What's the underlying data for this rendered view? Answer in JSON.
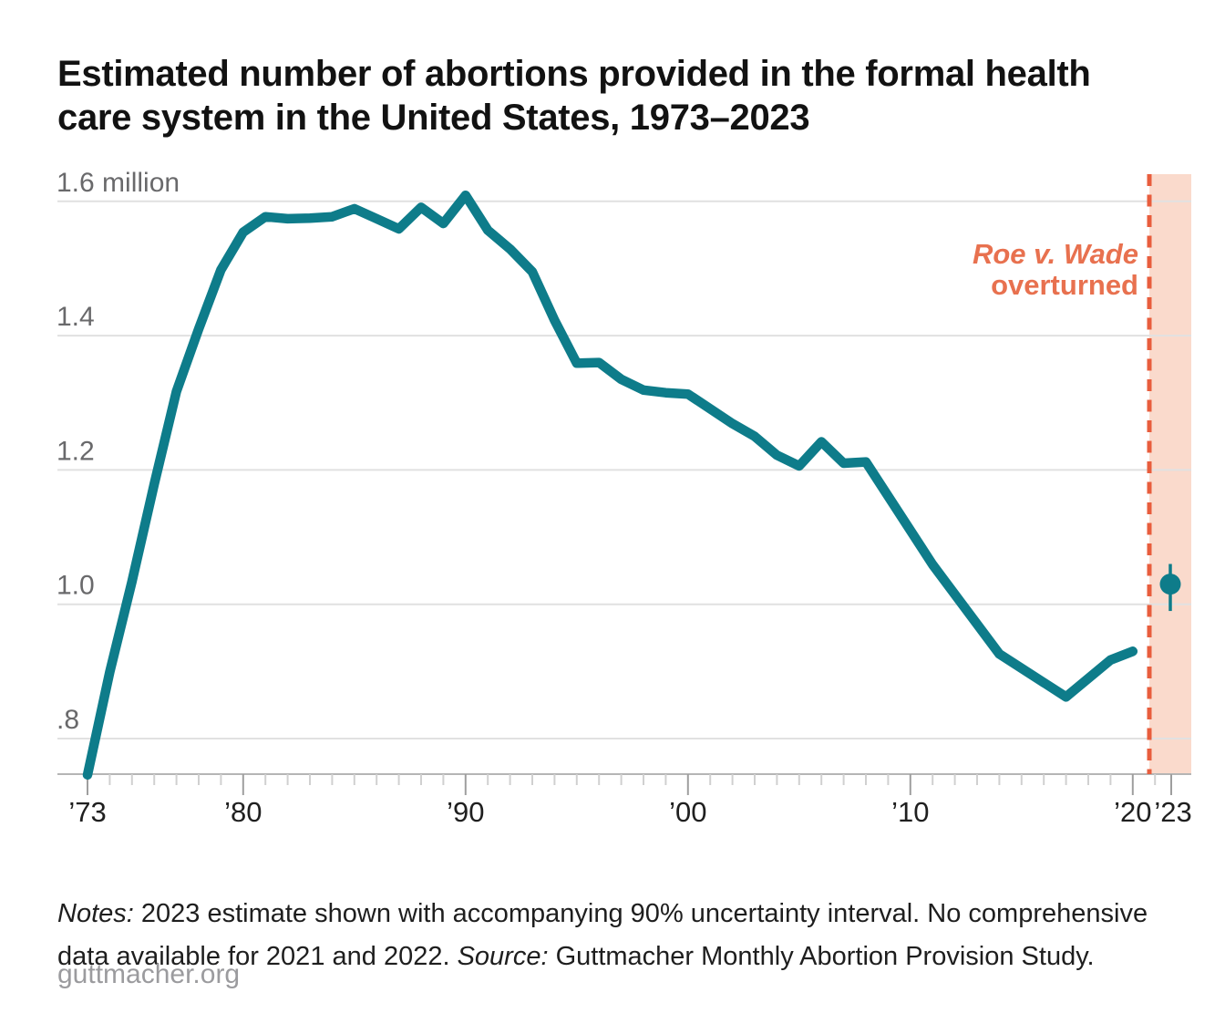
{
  "header": {
    "title": "Estimated number of abortions provided in the formal health care system in the United States, 1973–2023"
  },
  "chart_data": {
    "type": "line",
    "title": "Estimated number of abortions provided in the formal health care system in the United States, 1973–2023",
    "unit": "million abortions",
    "series_name": "Estimated abortions (millions)",
    "x": [
      1973,
      1974,
      1975,
      1976,
      1977,
      1978,
      1979,
      1980,
      1981,
      1982,
      1983,
      1984,
      1985,
      1986,
      1987,
      1988,
      1989,
      1990,
      1991,
      1992,
      1993,
      1994,
      1995,
      1996,
      1997,
      1998,
      1999,
      2000,
      2001,
      2002,
      2003,
      2004,
      2005,
      2006,
      2007,
      2008,
      2011,
      2014,
      2017,
      2019,
      2020
    ],
    "values": [
      0.746,
      0.899,
      1.034,
      1.179,
      1.317,
      1.41,
      1.498,
      1.554,
      1.577,
      1.574,
      1.575,
      1.577,
      1.589,
      1.574,
      1.559,
      1.591,
      1.567,
      1.609,
      1.557,
      1.529,
      1.495,
      1.423,
      1.359,
      1.36,
      1.335,
      1.319,
      1.315,
      1.313,
      1.291,
      1.269,
      1.25,
      1.222,
      1.206,
      1.242,
      1.21,
      1.212,
      1.059,
      0.926,
      0.862,
      0.917,
      0.93
    ],
    "estimate_2023": {
      "year": 2023,
      "value": 1.03,
      "ci_low": 0.99,
      "ci_high": 1.06
    },
    "no_data_region": {
      "from": 2021,
      "to": 2023,
      "note": "shaded band, no comprehensive data"
    },
    "annotations": {
      "roe_line1": "Roe v. Wade",
      "roe_line2": "overturned"
    },
    "y_ticks": [
      {
        "value": 1.6,
        "label": "1.6 million"
      },
      {
        "value": 1.4,
        "label": "1.4"
      },
      {
        "value": 1.2,
        "label": "1.2"
      },
      {
        "value": 1.0,
        "label": "1.0"
      },
      {
        "value": 0.8,
        "label": ".8"
      }
    ],
    "x_ticks": [
      {
        "year": 1973,
        "label": "’73"
      },
      {
        "year": 1980,
        "label": "’80"
      },
      {
        "year": 1990,
        "label": "’90"
      },
      {
        "year": 2000,
        "label": "’00"
      },
      {
        "year": 2010,
        "label": "’10"
      },
      {
        "year": 2020,
        "label": "’20"
      },
      {
        "year": 2023,
        "label": "’23"
      }
    ],
    "ylim": [
      0.747,
      1.66
    ],
    "xlim": [
      1973,
      2023
    ],
    "grid": "horizontal only",
    "legend": "none"
  },
  "notes": {
    "notes_label": "Notes:",
    "notes_text": " 2023 estimate shown with accompanying 90% uncertainty interval. No comprehensive data available for 2021 and 2022. ",
    "source_label": "Source:",
    "source_text": " Guttmacher Monthly Abortion Provision Study."
  },
  "footer": {
    "site": "guttmacher.org"
  },
  "colors": {
    "line": "#0e7c8a",
    "dot": "#0e7c8a",
    "dashed_line": "#e85d3d",
    "shaded_band": "#fadacc",
    "annotation_text": "#e8714f",
    "gridline": "#e1e1e1",
    "baseline": "#b5b5b5",
    "tick_minor": "#d0d0d0",
    "tick_major": "#9e9e9e",
    "y_label": "#69696b",
    "x_label": "#1f1f1f",
    "title_text": "#121212",
    "notes_text": "#1e1e1e",
    "footer_text": "#9b9b9e"
  }
}
